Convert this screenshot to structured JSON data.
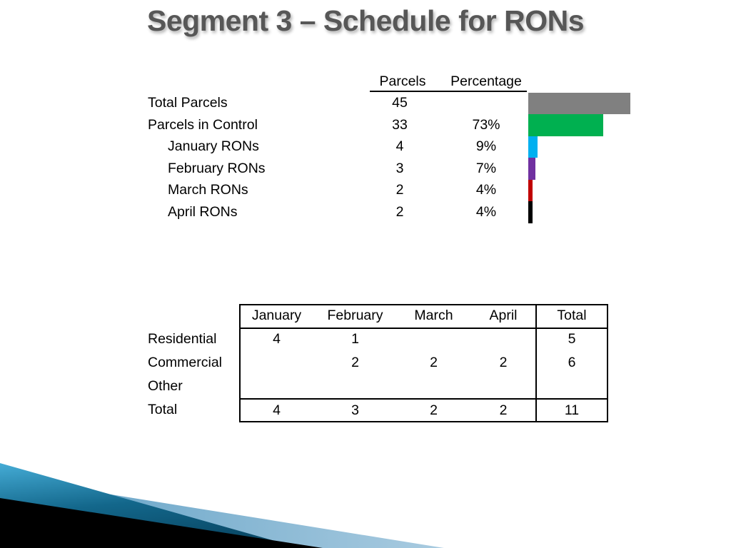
{
  "slide": {
    "title": "Segment 3 – Schedule for RONs"
  },
  "parcel_table": {
    "headers": {
      "parcels": "Parcels",
      "percentage": "Percentage"
    },
    "rows": [
      {
        "label": "Total Parcels",
        "parcels": "45",
        "percentage": ""
      },
      {
        "label": "Parcels in Control",
        "parcels": "33",
        "percentage": "73%"
      },
      {
        "label": "January RONs",
        "parcels": "4",
        "percentage": "9%"
      },
      {
        "label": "February RONs",
        "parcels": "3",
        "percentage": "7%"
      },
      {
        "label": "March RONs",
        "parcels": "2",
        "percentage": "4%"
      },
      {
        "label": "April RONs",
        "parcels": "2",
        "percentage": "4%"
      }
    ]
  },
  "schedule_table": {
    "column_headers": [
      "January",
      "February",
      "March",
      "April",
      "Total"
    ],
    "rows": [
      {
        "label": "Residential",
        "values": [
          "4",
          "1",
          "",
          "",
          "5"
        ]
      },
      {
        "label": "Commercial",
        "values": [
          "",
          "2",
          "2",
          "2",
          "6"
        ]
      },
      {
        "label": "Other",
        "values": [
          "",
          "",
          "",
          "",
          ""
        ]
      },
      {
        "label": "Total",
        "values": [
          "4",
          "3",
          "2",
          "2",
          "11"
        ]
      }
    ]
  },
  "chart_data": [
    {
      "type": "bar",
      "orientation": "horizontal",
      "title": "Segment 3 parcel counts",
      "categories": [
        "Total Parcels",
        "Parcels in Control",
        "January RONs",
        "February RONs",
        "March RONs",
        "April RONs"
      ],
      "series": [
        {
          "name": "Parcels",
          "values": [
            45,
            33,
            4,
            3,
            2,
            2
          ]
        },
        {
          "name": "Percentage",
          "values": [
            null,
            73,
            9,
            7,
            4,
            4
          ]
        }
      ],
      "bar_colors": [
        "#808080",
        "#00B050",
        "#00B0F0",
        "#7030A0",
        "#C00000",
        "#000000"
      ],
      "xlim": [
        0,
        45
      ],
      "grid": false,
      "legend": "none"
    },
    {
      "type": "table",
      "title": "RON schedule by month",
      "columns": [
        "",
        "January",
        "February",
        "March",
        "April",
        "Total"
      ],
      "rows": [
        [
          "Residential",
          4,
          1,
          null,
          null,
          5
        ],
        [
          "Commercial",
          null,
          2,
          2,
          2,
          6
        ],
        [
          "Other",
          null,
          null,
          null,
          null,
          null
        ],
        [
          "Total",
          4,
          3,
          2,
          2,
          11
        ]
      ]
    }
  ],
  "colors": {
    "title_gray": "#575757",
    "bar_gray": "#808080",
    "bar_green": "#00B050",
    "bar_cyan": "#00B0F0",
    "bar_purple": "#7030A0",
    "bar_red": "#C00000",
    "bar_black": "#000000",
    "deco_teal_light": "#45ACD6",
    "deco_teal_dark": "#0A4B69",
    "deco_light_blue": "#78B0D2",
    "deco_black": "#000000"
  }
}
